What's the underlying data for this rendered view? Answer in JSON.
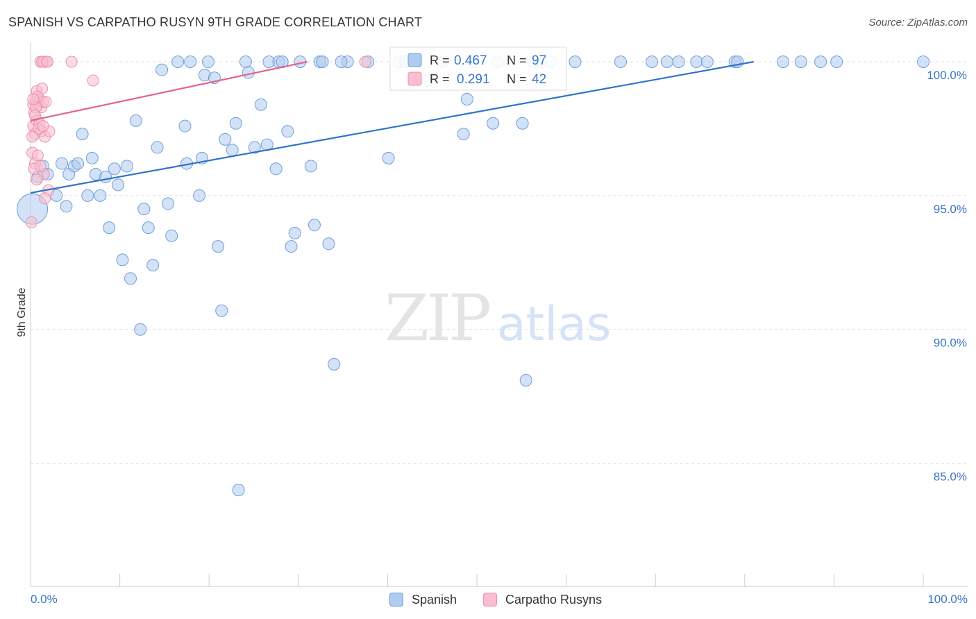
{
  "header": {
    "title": "SPANISH VS CARPATHO RUSYN 9TH GRADE CORRELATION CHART",
    "source": "Source: ZipAtlas.com"
  },
  "watermark": {
    "zip": "ZIP",
    "atlas": "atlas"
  },
  "colors": {
    "spanish_fill": "#aecbf0",
    "spanish_stroke": "#6f9fd8",
    "spanish_line": "#2f74c9",
    "rusyn_fill": "#f8bfd0",
    "rusyn_stroke": "#ee8fae",
    "rusyn_line": "#e4628d",
    "value_text": "#3a76c7",
    "grid": "#dddddd"
  },
  "legend_box": {
    "rows": [
      {
        "r_label": "R =",
        "r_value": "0.467",
        "n_label": "N =",
        "n_value": "97"
      },
      {
        "r_label": "R =",
        "r_value": "0.291",
        "n_label": "N =",
        "n_value": "42"
      }
    ]
  },
  "legend_bottom": {
    "items": [
      "Spanish",
      "Carpatho Rusyns"
    ]
  },
  "chart_data": {
    "type": "scatter",
    "title": "SPANISH VS CARPATHO RUSYN 9TH GRADE CORRELATION CHART",
    "xlabel": "",
    "ylabel": "9th Grade",
    "xlim": [
      0,
      100
    ],
    "ylim": [
      80.4,
      100.7
    ],
    "x_tick_labels": [
      "0.0%",
      "100.0%"
    ],
    "y_ticks": [
      85,
      90,
      95,
      100
    ],
    "y_tick_labels": [
      "85.0%",
      "90.0%",
      "95.0%",
      "100.0%"
    ],
    "grid": true,
    "series": [
      {
        "name": "Spanish",
        "r": 0.467,
        "n": 97,
        "trend": {
          "x": [
            0,
            81
          ],
          "y": [
            95.1,
            100.0
          ]
        },
        "points": [
          [
            0.2,
            94.5
          ],
          [
            0.8,
            95.7
          ],
          [
            1.4,
            96.1
          ],
          [
            1.9,
            95.8
          ],
          [
            2.9,
            95.0
          ],
          [
            3.5,
            96.2
          ],
          [
            4.0,
            94.6
          ],
          [
            4.3,
            95.8
          ],
          [
            4.9,
            96.1
          ],
          [
            5.3,
            96.2
          ],
          [
            5.8,
            97.3
          ],
          [
            6.4,
            95.0
          ],
          [
            6.9,
            96.4
          ],
          [
            7.3,
            95.8
          ],
          [
            7.8,
            95.0
          ],
          [
            8.4,
            95.7
          ],
          [
            8.8,
            93.8
          ],
          [
            9.4,
            96.0
          ],
          [
            9.8,
            95.4
          ],
          [
            10.3,
            92.6
          ],
          [
            10.8,
            96.1
          ],
          [
            11.2,
            91.9
          ],
          [
            11.8,
            97.8
          ],
          [
            12.3,
            90.0
          ],
          [
            12.7,
            94.5
          ],
          [
            13.2,
            93.8
          ],
          [
            13.7,
            92.4
          ],
          [
            14.2,
            96.8
          ],
          [
            14.7,
            99.7
          ],
          [
            15.4,
            94.7
          ],
          [
            15.8,
            93.5
          ],
          [
            16.5,
            100.0
          ],
          [
            17.3,
            97.6
          ],
          [
            17.5,
            96.2
          ],
          [
            17.9,
            100.0
          ],
          [
            18.9,
            95.0
          ],
          [
            19.2,
            96.4
          ],
          [
            19.5,
            99.5
          ],
          [
            19.9,
            100.0
          ],
          [
            20.6,
            99.4
          ],
          [
            21.0,
            93.1
          ],
          [
            21.4,
            90.7
          ],
          [
            21.8,
            97.1
          ],
          [
            22.6,
            96.7
          ],
          [
            23.0,
            97.7
          ],
          [
            23.3,
            84.0
          ],
          [
            24.1,
            100.0
          ],
          [
            24.4,
            99.6
          ],
          [
            25.1,
            96.8
          ],
          [
            25.8,
            98.4
          ],
          [
            26.5,
            96.9
          ],
          [
            26.7,
            100.0
          ],
          [
            27.5,
            96.0
          ],
          [
            27.8,
            100.0
          ],
          [
            28.2,
            100.0
          ],
          [
            28.8,
            97.4
          ],
          [
            29.2,
            93.1
          ],
          [
            29.6,
            93.6
          ],
          [
            30.2,
            100.0
          ],
          [
            31.4,
            96.1
          ],
          [
            31.8,
            93.9
          ],
          [
            32.4,
            100.0
          ],
          [
            32.7,
            100.0
          ],
          [
            33.4,
            93.2
          ],
          [
            34.0,
            88.7
          ],
          [
            35.5,
            100.0
          ],
          [
            37.8,
            100.0
          ],
          [
            40.1,
            96.4
          ],
          [
            41.3,
            100.0
          ],
          [
            42.0,
            100.0
          ],
          [
            46.2,
            100.0
          ],
          [
            48.5,
            97.3
          ],
          [
            48.9,
            98.6
          ],
          [
            49.6,
            100.0
          ],
          [
            51.8,
            97.7
          ],
          [
            52.3,
            100.0
          ],
          [
            55.1,
            97.7
          ],
          [
            55.5,
            88.1
          ],
          [
            56.3,
            100.0
          ],
          [
            57.2,
            100.0
          ],
          [
            58.3,
            100.0
          ],
          [
            61.0,
            100.0
          ],
          [
            66.1,
            100.0
          ],
          [
            69.6,
            100.0
          ],
          [
            71.3,
            100.0
          ],
          [
            72.6,
            100.0
          ],
          [
            74.6,
            100.0
          ],
          [
            75.8,
            100.0
          ],
          [
            78.9,
            100.0
          ],
          [
            79.2,
            100.0
          ],
          [
            84.3,
            100.0
          ],
          [
            86.3,
            100.0
          ],
          [
            88.5,
            100.0
          ],
          [
            90.3,
            100.0
          ],
          [
            100.0,
            100.0
          ],
          [
            44.5,
            99.3
          ],
          [
            34.8,
            100.0
          ]
        ],
        "sizes": [
          46,
          24
        ]
      },
      {
        "name": "Carpatho Rusyns",
        "r": 0.291,
        "n": 42,
        "trend": {
          "x": [
            0,
            31
          ],
          "y": [
            97.8,
            100.0
          ]
        },
        "points": [
          [
            0.1,
            94.0
          ],
          [
            0.2,
            96.6
          ],
          [
            0.3,
            97.6
          ],
          [
            0.3,
            98.4
          ],
          [
            0.4,
            98.1
          ],
          [
            0.5,
            97.3
          ],
          [
            0.5,
            96.2
          ],
          [
            0.6,
            98.6
          ],
          [
            0.7,
            97.8
          ],
          [
            0.7,
            98.9
          ],
          [
            0.8,
            96.5
          ],
          [
            0.9,
            98.4
          ],
          [
            1.0,
            97.7
          ],
          [
            1.0,
            98.6
          ],
          [
            1.1,
            100.0
          ],
          [
            1.2,
            98.3
          ],
          [
            1.2,
            97.4
          ],
          [
            1.3,
            99.0
          ],
          [
            1.4,
            98.5
          ],
          [
            1.5,
            100.0
          ],
          [
            1.5,
            95.8
          ],
          [
            1.6,
            97.2
          ],
          [
            1.7,
            98.5
          ],
          [
            1.8,
            100.0
          ],
          [
            2.0,
            95.2
          ],
          [
            2.1,
            97.4
          ],
          [
            1.3,
            100.0
          ],
          [
            0.4,
            96.0
          ],
          [
            0.6,
            98.3
          ],
          [
            0.9,
            97.5
          ],
          [
            1.1,
            96.1
          ],
          [
            0.2,
            97.2
          ],
          [
            1.6,
            94.9
          ],
          [
            0.8,
            98.7
          ],
          [
            0.5,
            98.0
          ],
          [
            1.9,
            100.0
          ],
          [
            0.3,
            98.6
          ],
          [
            1.4,
            97.6
          ],
          [
            4.6,
            100.0
          ],
          [
            7.0,
            99.3
          ],
          [
            37.5,
            100.0
          ],
          [
            0.7,
            95.6
          ]
        ],
        "sizes": [
          20
        ]
      }
    ]
  }
}
